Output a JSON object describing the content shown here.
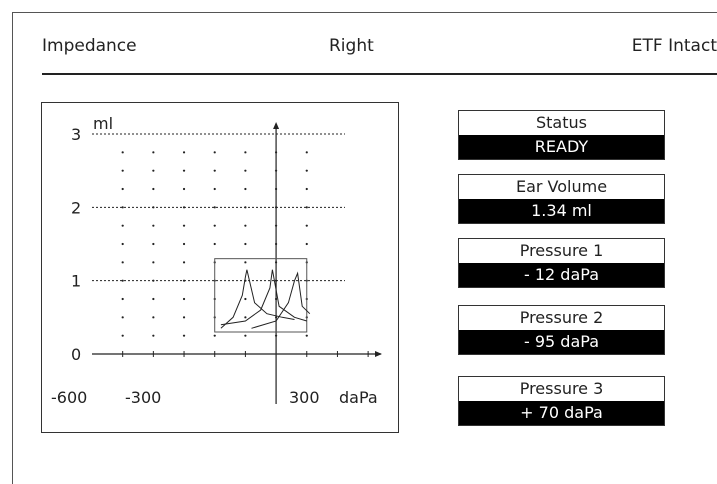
{
  "header": {
    "mode": "Impedance",
    "ear": "Right",
    "etf_status": "ETF Intact"
  },
  "panels": {
    "status": {
      "label": "Status",
      "value": "READY"
    },
    "ear_volume": {
      "label": "Ear Volume",
      "value": "1.34 ml"
    },
    "pressure1": {
      "label": "Pressure 1",
      "value": "- 12 daPa"
    },
    "pressure2": {
      "label": "Pressure 2",
      "value": "- 95 daPa"
    },
    "pressure3": {
      "label": "Pressure 3",
      "value": "+ 70 daPa"
    }
  },
  "chart_data": {
    "type": "line",
    "ylabel": "ml",
    "xlabel": "daPa",
    "xlim": [
      -600,
      400
    ],
    "ylim": [
      0,
      3
    ],
    "y_ticks": [
      "0",
      "1",
      "2",
      "3"
    ],
    "x_ticks": [
      "-600",
      "-300",
      "300"
    ],
    "grid": "dotted",
    "box": {
      "x": [
        -200,
        100
      ],
      "y": [
        0.3,
        1.3
      ]
    },
    "series": [
      {
        "x": [
          -180,
          -100,
          -50,
          -20,
          -12,
          10,
          60,
          100
        ],
        "y": [
          0.4,
          0.45,
          0.6,
          0.9,
          1.15,
          0.65,
          0.5,
          0.45
        ]
      },
      {
        "x": [
          -180,
          -140,
          -110,
          -100,
          -95,
          -70,
          -30,
          20,
          60
        ],
        "y": [
          0.35,
          0.5,
          0.8,
          1.05,
          1.15,
          0.7,
          0.55,
          0.5,
          0.47
        ]
      },
      {
        "x": [
          -80,
          0,
          40,
          60,
          70,
          85,
          110
        ],
        "y": [
          0.35,
          0.45,
          0.7,
          1.0,
          1.1,
          0.65,
          0.55
        ]
      }
    ]
  }
}
